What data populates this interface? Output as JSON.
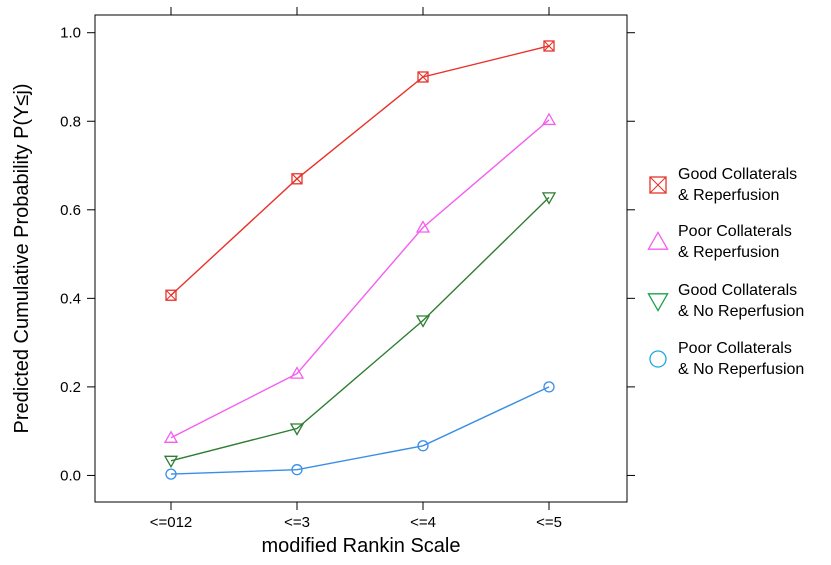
{
  "chart_data": {
    "type": "line",
    "title": "",
    "xlabel": "modified Rankin Scale",
    "ylabel": "Predicted Cumulative Probability P(Y≤j)",
    "categories": [
      "<=012",
      "<=3",
      "<=4",
      "<=5"
    ],
    "ylim": [
      -0.06,
      1.04
    ],
    "yticks": [
      "0.0",
      "0.2",
      "0.4",
      "0.6",
      "0.8",
      "1.0"
    ],
    "grid": false,
    "legend_position": "right",
    "series": [
      {
        "name": "Good Collaterals & Reperfusion",
        "legend_lines": [
          "Good Collaterals",
          "& Reperfusion"
        ],
        "marker": "square-x",
        "color": "#e8322a",
        "values": [
          0.407,
          0.67,
          0.9,
          0.97
        ]
      },
      {
        "name": "Poor Collaterals & Reperfusion",
        "legend_lines": [
          "Poor Collaterals",
          "& Reperfusion"
        ],
        "marker": "triangle-up",
        "color": "#f35ef0",
        "values": [
          0.085,
          0.23,
          0.56,
          0.803
        ]
      },
      {
        "name": "Good Collaterals & No Reperfusion",
        "legend_lines": [
          "Good Collaterals",
          "& No Reperfusion"
        ],
        "marker": "triangle-down",
        "color": "#2e7d32",
        "legend_color": "#17a34a",
        "values": [
          0.033,
          0.106,
          0.35,
          0.628
        ]
      },
      {
        "name": "Poor Collaterals & No Reperfusion",
        "legend_lines": [
          "Poor Collaterals",
          "& No Reperfusion"
        ],
        "marker": "circle",
        "color": "#3a8ee6",
        "legend_color": "#1ea8e0",
        "values": [
          0.003,
          0.013,
          0.067,
          0.2
        ]
      }
    ]
  }
}
